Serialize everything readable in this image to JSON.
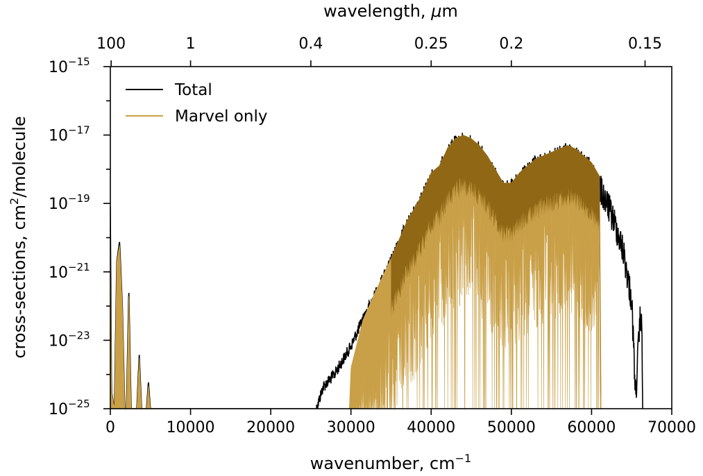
{
  "chart_data": {
    "type": "line",
    "xlabel": "wavenumber, cm",
    "xlabel_sup": "−1",
    "ylabel_main": "cross-sections, cm",
    "ylabel_sup": "2",
    "ylabel_tail": "/molecule",
    "top_label_prefix": "wavelength, ",
    "top_label_mu": "μ",
    "top_label_suffix": "m",
    "xlim": [
      0,
      70000
    ],
    "ylim_log10": [
      -25,
      -15
    ],
    "log_scale_y": true,
    "legend_position": "top-left",
    "x_ticks": [
      {
        "value": 0,
        "label": "0"
      },
      {
        "value": 10000,
        "label": "10000"
      },
      {
        "value": 20000,
        "label": "20000"
      },
      {
        "value": 30000,
        "label": "30000"
      },
      {
        "value": 40000,
        "label": "40000"
      },
      {
        "value": 50000,
        "label": "50000"
      },
      {
        "value": 60000,
        "label": "60000"
      },
      {
        "value": 70000,
        "label": "70000"
      }
    ],
    "y_ticks": [
      {
        "exp": -15,
        "base": "10",
        "sup": "−15"
      },
      {
        "exp": -17,
        "base": "10",
        "sup": "−17"
      },
      {
        "exp": -19,
        "base": "10",
        "sup": "−19"
      },
      {
        "exp": -21,
        "base": "10",
        "sup": "−21"
      },
      {
        "exp": -23,
        "base": "10",
        "sup": "−23"
      },
      {
        "exp": -25,
        "base": "10",
        "sup": "−25"
      }
    ],
    "top_ticks": [
      {
        "wavenumber": 100,
        "label": "100"
      },
      {
        "wavenumber": 10000,
        "label": "1"
      },
      {
        "wavenumber": 25000,
        "label": "0.4"
      },
      {
        "wavenumber": 40000,
        "label": "0.25"
      },
      {
        "wavenumber": 50000,
        "label": "0.2"
      },
      {
        "wavenumber": 66667,
        "label": "0.15"
      }
    ],
    "series": [
      {
        "name": "Total",
        "color": "#000000",
        "envelope": [
          [
            0,
            -19.1
          ],
          [
            150,
            -24.5
          ],
          [
            500,
            -25
          ],
          [
            800,
            -20.7
          ],
          [
            1150,
            -20.1
          ],
          [
            1500,
            -22
          ],
          [
            1800,
            -25
          ],
          [
            2000,
            -25
          ],
          [
            2300,
            -21.5
          ],
          [
            2600,
            -25
          ],
          [
            3300,
            -25
          ],
          [
            3600,
            -23.4
          ],
          [
            3900,
            -25
          ],
          [
            4500,
            -25
          ],
          [
            4750,
            -24.2
          ],
          [
            5000,
            -25
          ],
          [
            25500,
            -25
          ],
          [
            26500,
            -24.2
          ],
          [
            28000,
            -23.8
          ],
          [
            30000,
            -23.0
          ],
          [
            31500,
            -22.2
          ],
          [
            33000,
            -21.5
          ],
          [
            35000,
            -20.5
          ],
          [
            37000,
            -19.4
          ],
          [
            38500,
            -18.8
          ],
          [
            40000,
            -18.0
          ],
          [
            41000,
            -17.8
          ],
          [
            42000,
            -17.3
          ],
          [
            43000,
            -17.0
          ],
          [
            44000,
            -16.9
          ],
          [
            45000,
            -17.0
          ],
          [
            46000,
            -17.2
          ],
          [
            47000,
            -17.5
          ],
          [
            48000,
            -17.9
          ],
          [
            49000,
            -18.3
          ],
          [
            50000,
            -18.3
          ],
          [
            51000,
            -18.0
          ],
          [
            52000,
            -17.8
          ],
          [
            53000,
            -17.6
          ],
          [
            54000,
            -17.5
          ],
          [
            55000,
            -17.4
          ],
          [
            56000,
            -17.3
          ],
          [
            57000,
            -17.2
          ],
          [
            58000,
            -17.3
          ],
          [
            59000,
            -17.5
          ],
          [
            60000,
            -17.7
          ],
          [
            61000,
            -18.1
          ],
          [
            62000,
            -18.6
          ],
          [
            63000,
            -19.2
          ],
          [
            64000,
            -20.0
          ],
          [
            65000,
            -21.4
          ],
          [
            65500,
            -24.2
          ],
          [
            65900,
            -22.5
          ],
          [
            66100,
            -21.8
          ],
          [
            66300,
            -22.5
          ],
          [
            66400,
            -25
          ]
        ]
      },
      {
        "name": "Marvel only",
        "color": "#c9a048",
        "envelope": [
          [
            0,
            -19.2
          ],
          [
            150,
            -24.5
          ],
          [
            500,
            -25
          ],
          [
            800,
            -20.7
          ],
          [
            1150,
            -20.2
          ],
          [
            1500,
            -22
          ],
          [
            1800,
            -25
          ],
          [
            2000,
            -25
          ],
          [
            2300,
            -21.6
          ],
          [
            2600,
            -25
          ],
          [
            3300,
            -25
          ],
          [
            3600,
            -23.5
          ],
          [
            3900,
            -25
          ],
          [
            4500,
            -25
          ],
          [
            4750,
            -24.3
          ],
          [
            5000,
            -25
          ],
          [
            29800,
            -25
          ],
          [
            30000,
            -23.8
          ],
          [
            31500,
            -22.4
          ],
          [
            33000,
            -21.6
          ],
          [
            35000,
            -20.6
          ],
          [
            37000,
            -19.5
          ],
          [
            38500,
            -18.9
          ],
          [
            40000,
            -18.1
          ],
          [
            41000,
            -17.9
          ],
          [
            42000,
            -17.4
          ],
          [
            43000,
            -17.1
          ],
          [
            44000,
            -17.0
          ],
          [
            45000,
            -17.1
          ],
          [
            46000,
            -17.3
          ],
          [
            47000,
            -17.6
          ],
          [
            48000,
            -18.0
          ],
          [
            49000,
            -18.4
          ],
          [
            50000,
            -18.4
          ],
          [
            51000,
            -18.1
          ],
          [
            52000,
            -17.9
          ],
          [
            53000,
            -17.7
          ],
          [
            54000,
            -17.6
          ],
          [
            55000,
            -17.5
          ],
          [
            56000,
            -17.4
          ],
          [
            57000,
            -17.3
          ],
          [
            58000,
            -17.4
          ],
          [
            59000,
            -17.6
          ],
          [
            60000,
            -17.8
          ],
          [
            61000,
            -18.2
          ],
          [
            61200,
            -25
          ]
        ]
      }
    ]
  }
}
